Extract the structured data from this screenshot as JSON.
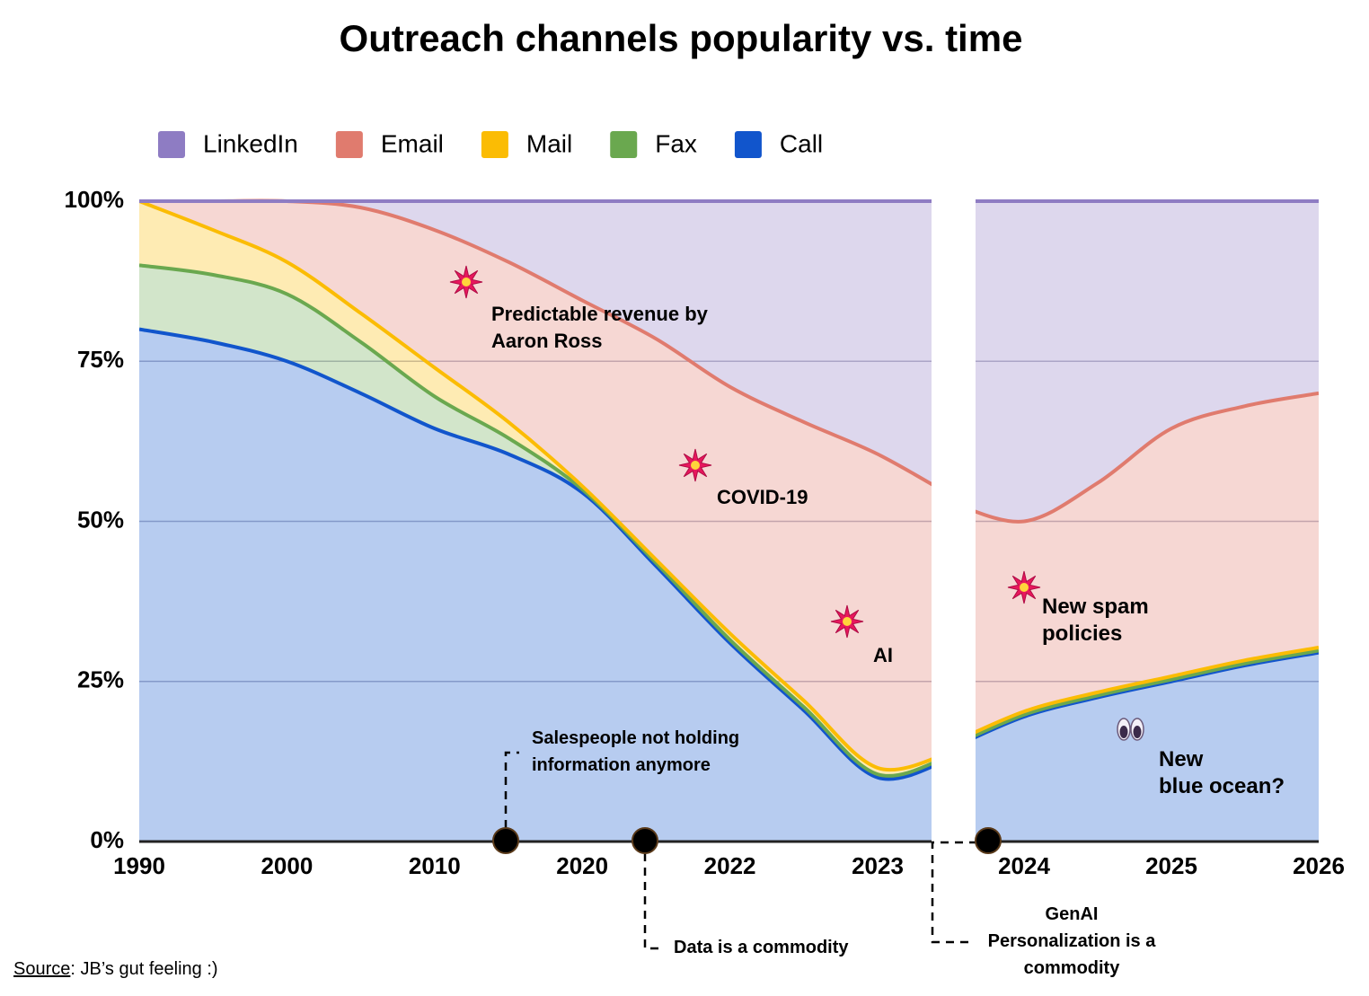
{
  "chart_data": {
    "type": "stacked-area",
    "title": "Outreach channels popularity vs. time",
    "categories": [
      "1990",
      null,
      "2000",
      null,
      "2010",
      null,
      "2020",
      null,
      "2022",
      null,
      "2023",
      null,
      null,
      "2024",
      null,
      "2025",
      null,
      "2026"
    ],
    "series": [
      {
        "name": "LinkedIn",
        "color": "#8e7cc3",
        "values": [
          0,
          0,
          0,
          1,
          4.5,
          9.5,
          15.5,
          21.5,
          29,
          34.5,
          39.5,
          46,
          47,
          50,
          44,
          35.5,
          32,
          30
        ]
      },
      {
        "name": "Email",
        "color": "#e07b6e",
        "values": [
          0,
          4.5,
          9.5,
          16.5,
          21.5,
          25,
          29,
          34.5,
          38.5,
          43.5,
          49,
          40,
          37.7,
          29.7,
          32.7,
          38.7,
          39.7,
          39.7
        ]
      },
      {
        "name": "Mail",
        "color": "#fbbc04",
        "values": [
          10,
          7,
          5,
          4.5,
          4.5,
          2.5,
          0.5,
          0.5,
          1,
          1,
          1,
          0.5,
          0.5,
          0.5,
          0.5,
          0.5,
          0.5,
          0.5
        ]
      },
      {
        "name": "Fax",
        "color": "#6aa84f",
        "values": [
          10,
          10.5,
          10.5,
          8,
          5,
          2.5,
          0.5,
          0.5,
          0.5,
          0.5,
          0.5,
          0.5,
          0.3,
          0.3,
          0.3,
          0.3,
          0.3,
          0.3
        ]
      },
      {
        "name": "Call",
        "color": "#1155cc",
        "values": [
          80,
          78,
          75,
          70,
          64.5,
          60.5,
          54.5,
          43,
          31,
          20.5,
          10,
          13,
          14.5,
          19.5,
          22.5,
          25,
          27.5,
          29.5
        ]
      }
    ],
    "ylim": [
      0,
      100
    ],
    "yticks": [
      {
        "value": 0,
        "label": "0%"
      },
      {
        "value": 25,
        "label": "25%"
      },
      {
        "value": 50,
        "label": "50%"
      },
      {
        "value": 75,
        "label": "75%"
      },
      {
        "value": 100,
        "label": "100%"
      }
    ],
    "grid": true,
    "legend": "top",
    "annotations": [
      {
        "lines": [
          "Predictable revenue by",
          "Aaron Ross"
        ]
      },
      {
        "lines": [
          "COVID-19"
        ]
      },
      {
        "lines": [
          "AI"
        ]
      },
      {
        "lines": [
          "New spam",
          "policies"
        ]
      },
      {
        "lines": [
          "New",
          "blue ocean?"
        ]
      },
      {
        "lines": [
          "Salespeople not holding",
          "information anymore"
        ]
      },
      {
        "lines": [
          "Data is a commodity"
        ]
      },
      {
        "lines": [
          "GenAI",
          "Personalization is a",
          "commodity"
        ]
      }
    ],
    "source": {
      "label": "Source",
      "text": ": JB’s gut feeling :)"
    }
  }
}
